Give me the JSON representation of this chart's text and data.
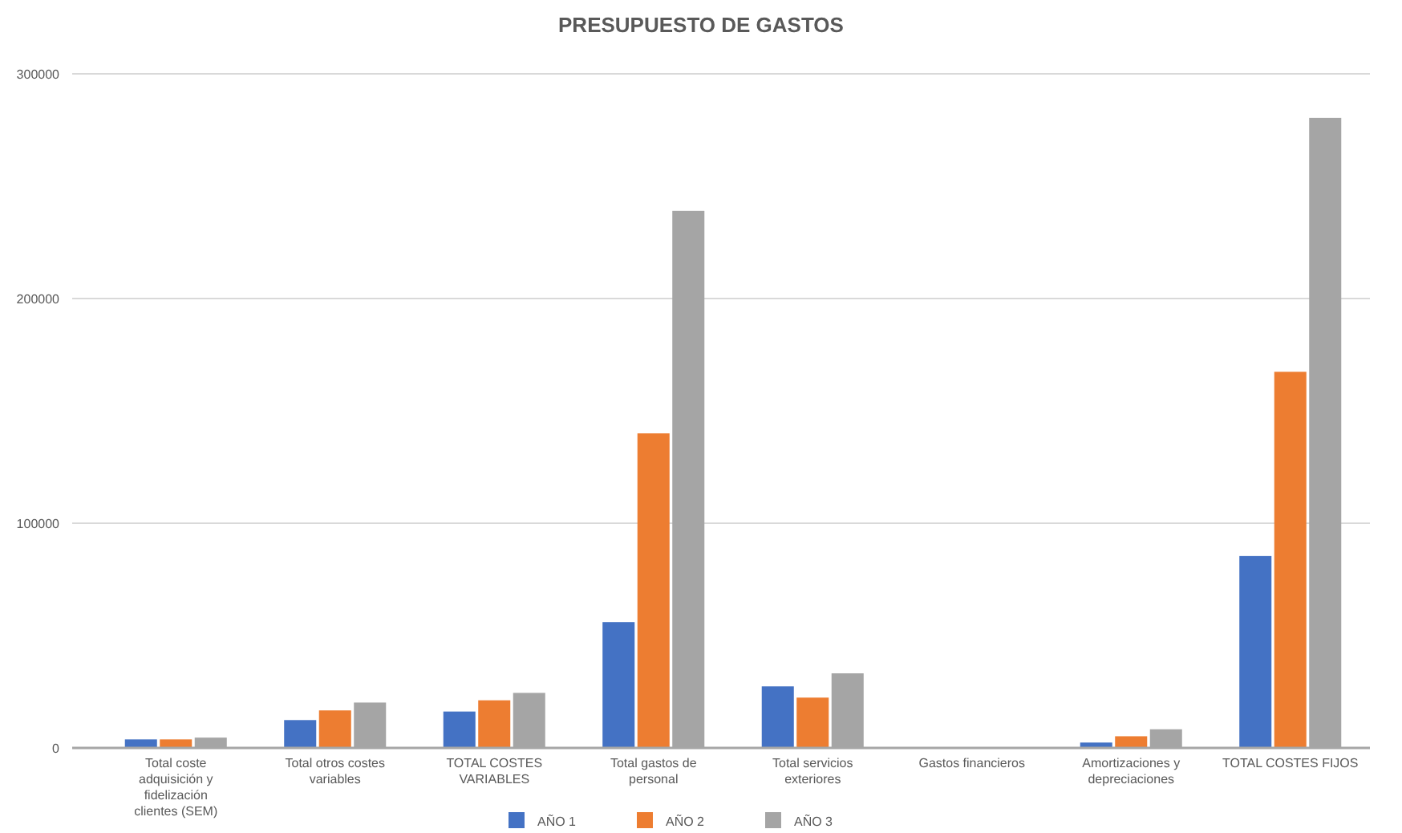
{
  "chart_data": {
    "type": "bar",
    "title": "PRESUPUESTO DE GASTOS",
    "categories": [
      "Total coste adquisición y fidelización clientes (SEM)",
      "Total otros costes variables",
      "TOTAL COSTES VARIABLES",
      "Total gastos de personal",
      "Total servicios exteriores",
      "Gastos financieros",
      "Amortizaciones y depreciaciones",
      "TOTAL COSTES FIJOS"
    ],
    "series": [
      {
        "name": "AÑO 1",
        "color": "#4472c4",
        "values": [
          3800,
          12400,
          16200,
          56000,
          27400,
          0,
          2400,
          85400
        ]
      },
      {
        "name": "AÑO 2",
        "color": "#ed7d31",
        "values": [
          3800,
          16700,
          21200,
          140000,
          22400,
          0,
          5200,
          167400
        ]
      },
      {
        "name": "AÑO 3",
        "color": "#a5a5a5",
        "values": [
          4600,
          20200,
          24500,
          239000,
          33200,
          0,
          8300,
          280400
        ]
      }
    ],
    "ylim": [
      0,
      300000
    ],
    "yticks": [
      0,
      100000,
      200000,
      300000
    ],
    "grid": "y",
    "legend": "bottom"
  }
}
